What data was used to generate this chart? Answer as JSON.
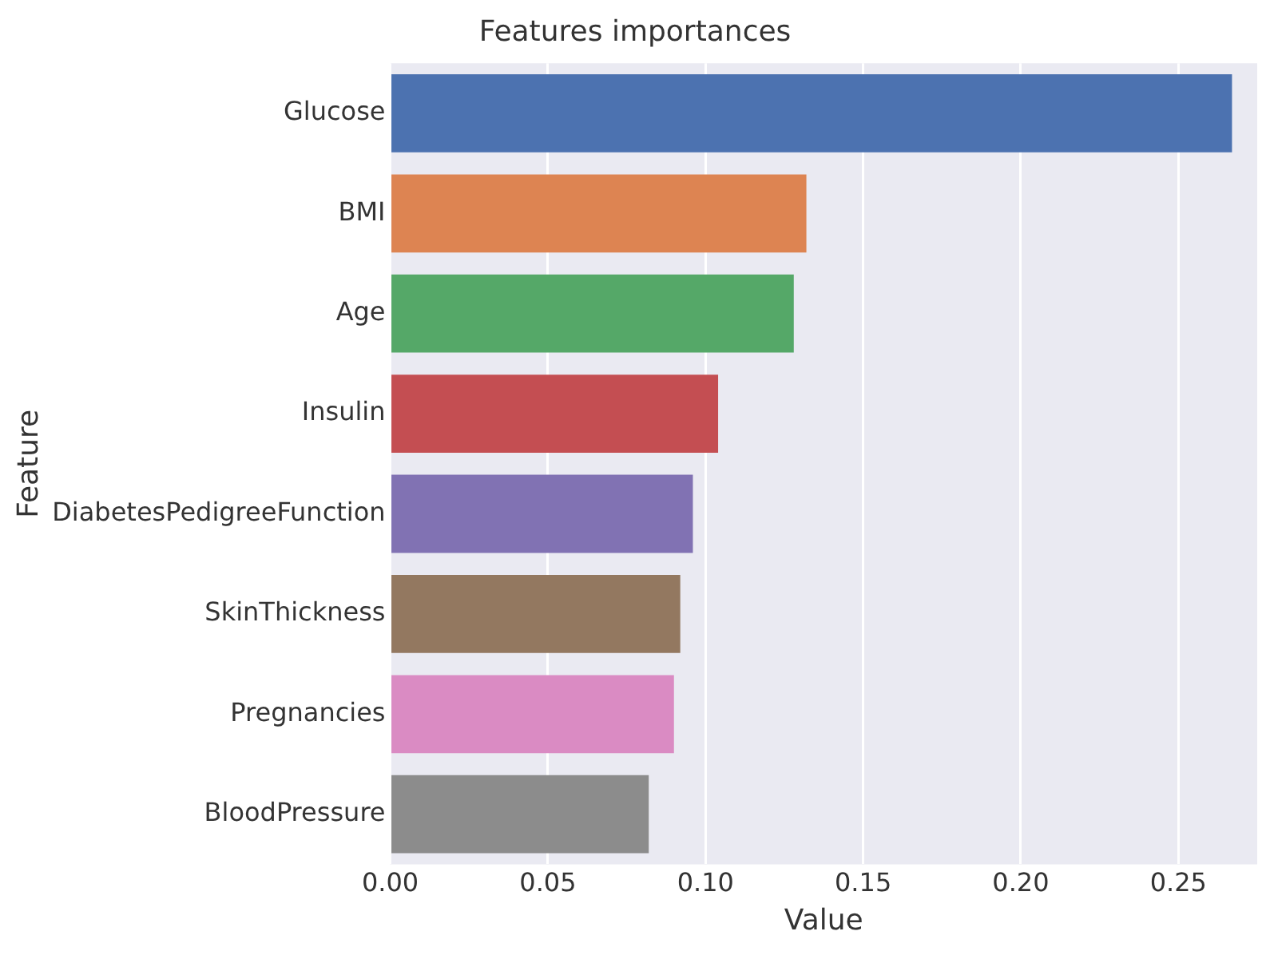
{
  "chart_data": {
    "type": "bar",
    "orientation": "horizontal",
    "title": "Features importances",
    "xlabel": "Value",
    "ylabel": "Feature",
    "categories": [
      "Glucose",
      "BMI",
      "Age",
      "Insulin",
      "DiabetesPedigreeFunction",
      "SkinThickness",
      "Pregnancies",
      "BloodPressure"
    ],
    "values": [
      0.267,
      0.132,
      0.128,
      0.104,
      0.096,
      0.092,
      0.09,
      0.082
    ],
    "colors": [
      "#4c72b0",
      "#dd8452",
      "#55a868",
      "#c44e52",
      "#8172b3",
      "#937860",
      "#da8bc3",
      "#8c8c8c"
    ],
    "xlim": [
      0,
      0.275
    ],
    "xticks": [
      {
        "value": 0,
        "label": "0.00"
      },
      {
        "value": 0.05,
        "label": "0.05"
      },
      {
        "value": 0.1,
        "label": "0.10"
      },
      {
        "value": 0.15,
        "label": "0.15"
      },
      {
        "value": 0.2,
        "label": "0.20"
      },
      {
        "value": 0.25,
        "label": "0.25"
      }
    ],
    "grid": "x"
  }
}
